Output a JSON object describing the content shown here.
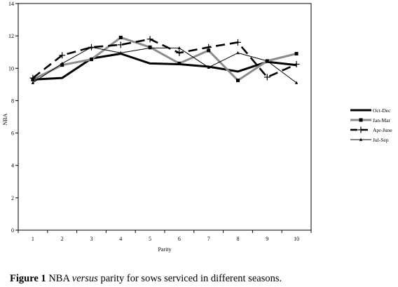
{
  "chart_data": {
    "type": "line",
    "title": "",
    "xlabel": "Parity",
    "ylabel": "NBA",
    "x": [
      1,
      2,
      3,
      4,
      5,
      6,
      7,
      8,
      9,
      10
    ],
    "xlim": [
      0.5,
      10.5
    ],
    "ylim": [
      0,
      14
    ],
    "yticks": [
      0,
      2,
      4,
      6,
      8,
      10,
      12,
      14
    ],
    "grid": false,
    "legend_position": "right",
    "series": [
      {
        "name": "Oct-Dec",
        "color": "#000000",
        "style": "solid-thick",
        "marker": "none",
        "values": [
          9.3,
          9.4,
          10.6,
          10.9,
          10.3,
          10.25,
          10.1,
          9.8,
          10.4,
          10.2
        ]
      },
      {
        "name": "Jan-Mar",
        "color": "#8c8c8c",
        "style": "solid-thick",
        "marker": "square",
        "values": [
          9.3,
          10.2,
          10.55,
          11.9,
          11.3,
          10.3,
          11.1,
          9.25,
          10.45,
          10.9
        ]
      },
      {
        "name": "Apr-June",
        "color": "#000000",
        "style": "dashed-thick",
        "marker": "plus",
        "values": [
          9.4,
          10.8,
          11.3,
          11.45,
          11.8,
          10.95,
          11.3,
          11.6,
          9.45,
          10.25
        ]
      },
      {
        "name": "Jul-Sep",
        "color": "#000000",
        "style": "solid-thin",
        "marker": "triangle",
        "values": [
          9.1,
          10.3,
          11.3,
          10.95,
          11.25,
          11.25,
          10.05,
          10.95,
          10.45,
          9.1
        ]
      }
    ]
  },
  "caption": {
    "label": "Figure 1",
    "text_a": " NBA ",
    "text_em": "versus",
    "text_b": " parity for sows serviced in different seasons."
  }
}
